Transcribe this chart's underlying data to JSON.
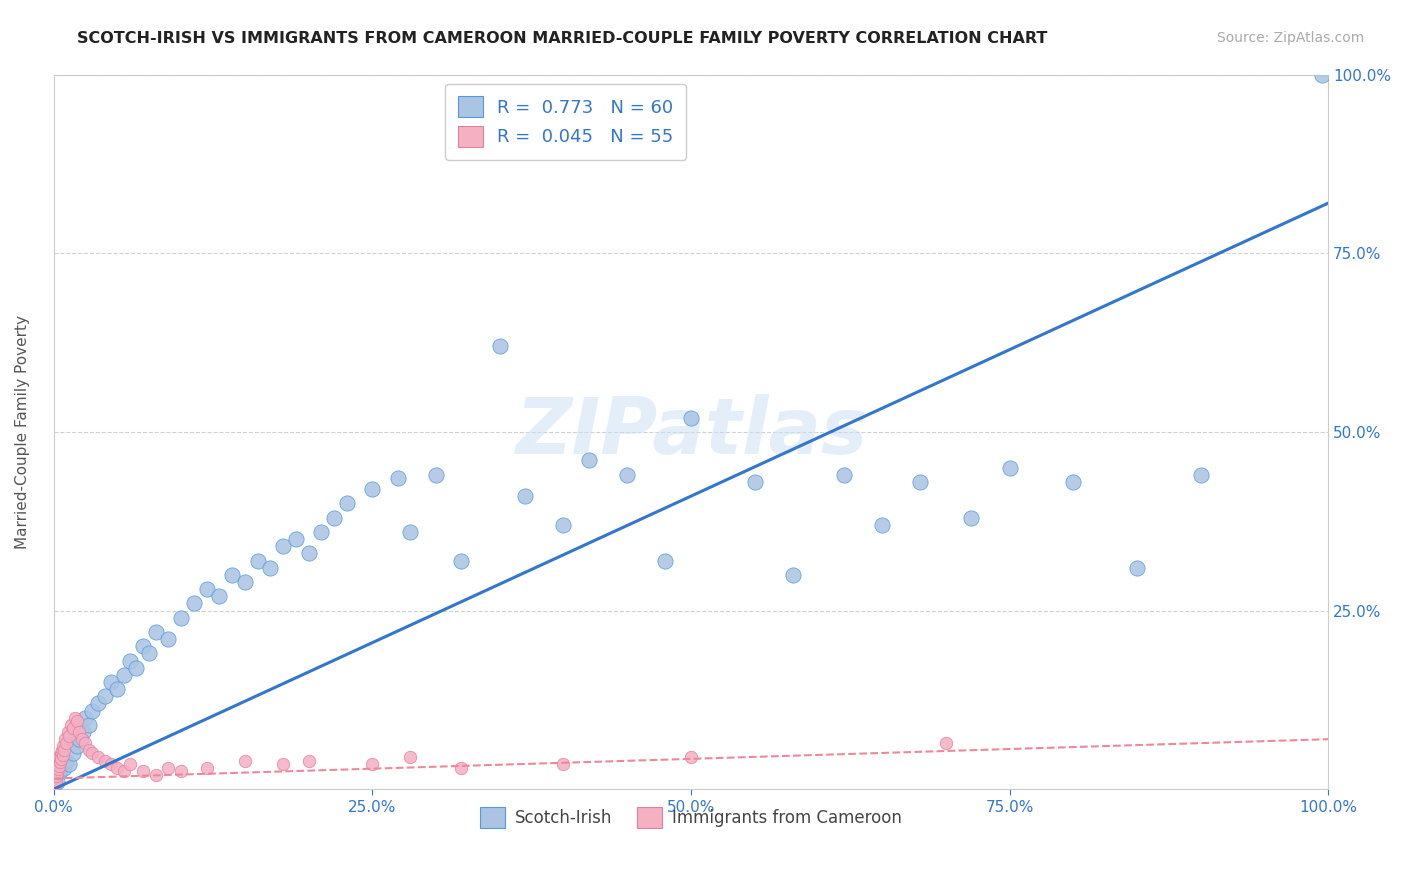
{
  "title": "SCOTCH-IRISH VS IMMIGRANTS FROM CAMEROON MARRIED-COUPLE FAMILY POVERTY CORRELATION CHART",
  "source": "Source: ZipAtlas.com",
  "ylabel": "Married-Couple Family Poverty",
  "blue_R": 0.773,
  "blue_N": 60,
  "pink_R": 0.045,
  "pink_N": 55,
  "blue_color": "#aac4e2",
  "pink_color": "#f5b0c2",
  "blue_edge_color": "#5599dd",
  "pink_edge_color": "#e080a0",
  "blue_line_color": "#3377cc",
  "pink_line_color": "#ee8899",
  "title_color": "#222222",
  "legend_text_color": "#3377cc",
  "axis_tick_color": "#3377cc",
  "watermark": "ZIPatlas",
  "watermark_color": "#c8dff5",
  "grid_color": "#cccccc",
  "bg_color": "#ffffff",
  "blue_slope": 0.82,
  "blue_intercept": 0.0,
  "pink_slope": 0.055,
  "pink_intercept": 1.5,
  "blue_x": [
    0.3,
    0.5,
    0.8,
    1.0,
    1.2,
    1.5,
    1.8,
    2.0,
    2.3,
    2.5,
    2.8,
    3.0,
    3.5,
    4.0,
    4.5,
    5.0,
    5.5,
    6.0,
    6.5,
    7.0,
    7.5,
    8.0,
    9.0,
    10.0,
    11.0,
    12.0,
    13.0,
    14.0,
    15.0,
    16.0,
    17.0,
    18.0,
    19.0,
    20.0,
    21.0,
    22.0,
    23.0,
    25.0,
    27.0,
    28.0,
    30.0,
    32.0,
    35.0,
    37.0,
    40.0,
    42.0,
    45.0,
    48.0,
    50.0,
    55.0,
    58.0,
    62.0,
    65.0,
    68.0,
    72.0,
    75.0,
    80.0,
    85.0,
    90.0,
    99.5
  ],
  "blue_y": [
    1.0,
    2.5,
    3.0,
    4.0,
    3.5,
    5.0,
    6.0,
    7.0,
    8.0,
    10.0,
    9.0,
    11.0,
    12.0,
    13.0,
    15.0,
    14.0,
    16.0,
    18.0,
    17.0,
    20.0,
    19.0,
    22.0,
    21.0,
    24.0,
    26.0,
    28.0,
    27.0,
    30.0,
    29.0,
    32.0,
    31.0,
    34.0,
    35.0,
    33.0,
    36.0,
    38.0,
    40.0,
    42.0,
    43.5,
    36.0,
    44.0,
    32.0,
    62.0,
    41.0,
    37.0,
    46.0,
    44.0,
    32.0,
    52.0,
    43.0,
    30.0,
    44.0,
    37.0,
    43.0,
    38.0,
    45.0,
    43.0,
    31.0,
    44.0,
    100.0
  ],
  "pink_x": [
    0.05,
    0.08,
    0.1,
    0.12,
    0.15,
    0.18,
    0.2,
    0.22,
    0.25,
    0.28,
    0.3,
    0.35,
    0.38,
    0.4,
    0.45,
    0.5,
    0.55,
    0.6,
    0.65,
    0.7,
    0.75,
    0.8,
    0.9,
    1.0,
    1.1,
    1.2,
    1.4,
    1.5,
    1.7,
    1.8,
    2.0,
    2.2,
    2.5,
    2.8,
    3.0,
    3.5,
    4.0,
    4.5,
    5.0,
    5.5,
    6.0,
    7.0,
    8.0,
    9.0,
    10.0,
    12.0,
    15.0,
    18.0,
    20.0,
    25.0,
    28.0,
    32.0,
    40.0,
    50.0,
    70.0
  ],
  "pink_y": [
    0.5,
    1.0,
    1.5,
    0.8,
    2.0,
    1.2,
    2.5,
    1.8,
    3.0,
    2.2,
    3.5,
    2.8,
    4.0,
    3.2,
    4.5,
    3.8,
    5.0,
    4.2,
    5.5,
    4.8,
    6.0,
    5.5,
    7.0,
    6.5,
    8.0,
    7.5,
    9.0,
    8.5,
    10.0,
    9.5,
    8.0,
    7.0,
    6.5,
    5.5,
    5.0,
    4.5,
    4.0,
    3.5,
    3.0,
    2.5,
    3.5,
    2.5,
    2.0,
    3.0,
    2.5,
    3.0,
    4.0,
    3.5,
    4.0,
    3.5,
    4.5,
    3.0,
    3.5,
    4.5,
    6.5
  ],
  "xmin": 0,
  "xmax": 100,
  "ymin": 0,
  "ymax": 100,
  "xtick_vals": [
    0,
    25,
    50,
    75,
    100
  ],
  "ytick_vals": [
    0,
    25,
    50,
    75,
    100
  ],
  "xticklabels": [
    "0.0%",
    "25.0%",
    "50.0%",
    "75.0%",
    "100.0%"
  ],
  "yticklabels_right": [
    "",
    "25.0%",
    "50.0%",
    "75.0%",
    "100.0%"
  ]
}
